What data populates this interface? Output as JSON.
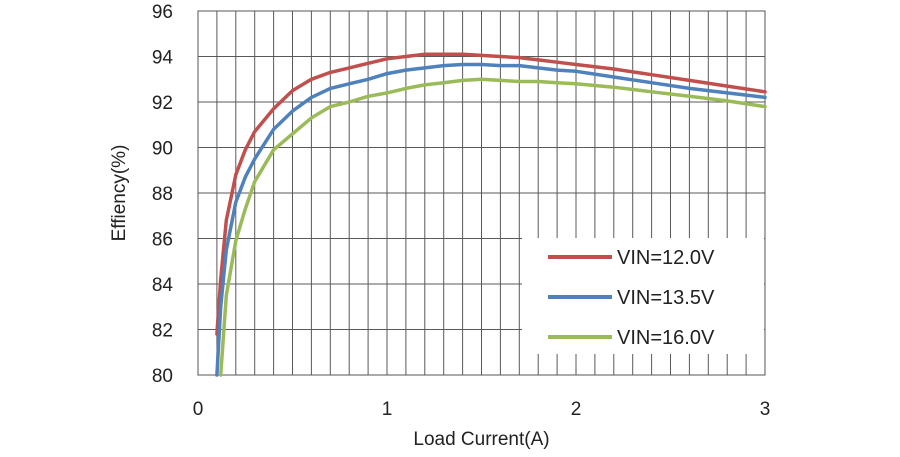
{
  "chart_data": {
    "type": "line",
    "title": "",
    "xlabel": "Load Current(A)",
    "ylabel": "Effiency(%)",
    "xlim": [
      0,
      3
    ],
    "ylim": [
      80,
      96
    ],
    "xticks": [
      0,
      1,
      2,
      3
    ],
    "yticks": [
      80,
      82,
      84,
      86,
      88,
      90,
      92,
      94,
      96
    ],
    "grid": true,
    "legend_position": "bottom-right",
    "series": [
      {
        "name": "VIN=12.0V",
        "color": "#c0504d",
        "x": [
          0.1,
          0.12,
          0.15,
          0.2,
          0.25,
          0.3,
          0.4,
          0.5,
          0.6,
          0.7,
          0.8,
          0.9,
          1.0,
          1.1,
          1.2,
          1.3,
          1.4,
          1.5,
          1.6,
          1.7,
          1.8,
          1.9,
          2.0,
          2.2,
          2.4,
          2.6,
          2.8,
          3.0
        ],
        "y": [
          81.8,
          84.2,
          86.8,
          88.8,
          89.9,
          90.7,
          91.7,
          92.5,
          93.0,
          93.3,
          93.5,
          93.7,
          93.9,
          94.0,
          94.1,
          94.1,
          94.1,
          94.05,
          94.0,
          93.95,
          93.85,
          93.75,
          93.65,
          93.45,
          93.2,
          92.95,
          92.7,
          92.45
        ]
      },
      {
        "name": "VIN=13.5V",
        "color": "#4f81bd",
        "x": [
          0.1,
          0.12,
          0.15,
          0.2,
          0.25,
          0.3,
          0.4,
          0.5,
          0.6,
          0.7,
          0.8,
          0.9,
          1.0,
          1.1,
          1.2,
          1.3,
          1.4,
          1.5,
          1.6,
          1.7,
          1.8,
          1.9,
          2.0,
          2.2,
          2.4,
          2.6,
          2.8,
          3.0
        ],
        "y": [
          80.0,
          83.0,
          85.5,
          87.6,
          88.7,
          89.5,
          90.8,
          91.6,
          92.2,
          92.6,
          92.8,
          93.0,
          93.25,
          93.4,
          93.5,
          93.6,
          93.65,
          93.65,
          93.6,
          93.6,
          93.5,
          93.4,
          93.35,
          93.1,
          92.85,
          92.6,
          92.4,
          92.2
        ]
      },
      {
        "name": "VIN=16.0V",
        "color": "#9bbb59",
        "x": [
          0.12,
          0.15,
          0.2,
          0.25,
          0.3,
          0.4,
          0.5,
          0.6,
          0.7,
          0.8,
          0.9,
          1.0,
          1.1,
          1.2,
          1.3,
          1.4,
          1.5,
          1.6,
          1.7,
          1.8,
          1.9,
          2.0,
          2.2,
          2.4,
          2.6,
          2.8,
          3.0
        ],
        "y": [
          80.0,
          83.5,
          85.9,
          87.3,
          88.5,
          89.9,
          90.6,
          91.3,
          91.8,
          92.0,
          92.25,
          92.4,
          92.6,
          92.75,
          92.85,
          92.95,
          93.0,
          92.95,
          92.9,
          92.9,
          92.85,
          92.8,
          92.65,
          92.45,
          92.25,
          92.05,
          91.8
        ]
      }
    ]
  }
}
